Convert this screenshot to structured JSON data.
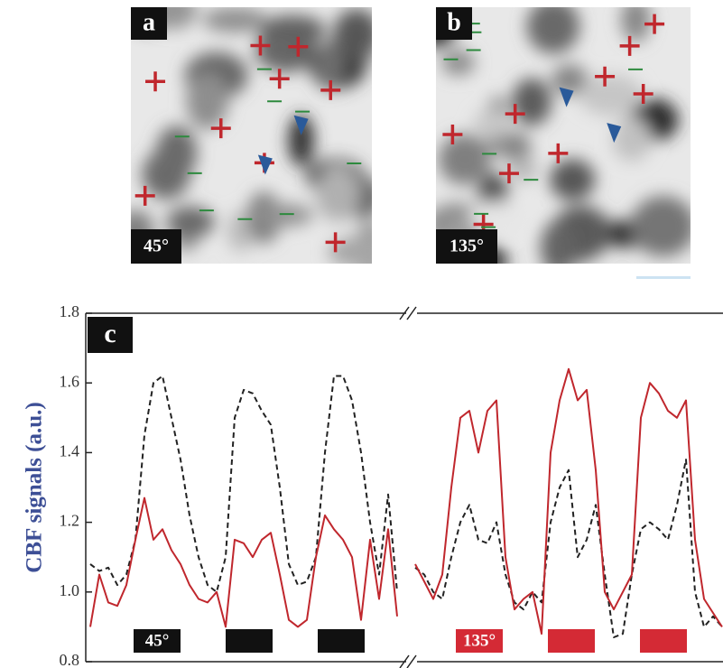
{
  "images": [
    {
      "label": "a",
      "angle": "45°"
    },
    {
      "label": "b",
      "angle": "135°"
    }
  ],
  "chart_data": {
    "type": "line",
    "panel_label": "c",
    "y_label": "CBF signals (a.u.)",
    "ylim": [
      0.8,
      1.8
    ],
    "yticks": [
      {
        "value": 0.8,
        "label": "0.8"
      },
      {
        "value": 1,
        "label": "1.0"
      },
      1.2,
      1.4,
      1.6,
      1.8
    ],
    "stimulus_labels": [
      "45°",
      "135°"
    ],
    "series": [
      {
        "color": "#222222",
        "dash": true,
        "values": [
          1.08,
          1.06,
          1.07,
          1.02,
          1.05,
          1.15,
          1.45,
          1.6,
          1.62,
          1.5,
          1.38,
          1.22,
          1.1,
          1.02,
          1.0,
          1.1,
          1.5,
          1.58,
          1.57,
          1.52,
          1.48,
          1.3,
          1.08,
          1.02,
          1.03,
          1.1,
          1.4,
          1.62,
          1.62,
          1.55,
          1.4,
          1.2,
          1.05,
          1.28,
          1.0,
          null,
          1.07,
          1.05,
          1.0,
          0.98,
          1.1,
          1.2,
          1.25,
          1.15,
          1.14,
          1.2,
          1.05,
          0.97,
          0.95,
          1.0,
          0.97,
          1.2,
          1.3,
          1.35,
          1.1,
          1.15,
          1.25,
          1.05,
          0.87,
          0.88,
          1.05,
          1.18,
          1.2,
          1.18,
          1.15,
          1.25,
          1.38,
          1.0,
          0.9,
          0.93,
          0.9
        ]
      },
      {
        "color": "#c0272d",
        "dash": false,
        "values": [
          0.9,
          1.05,
          0.97,
          0.96,
          1.02,
          1.15,
          1.27,
          1.15,
          1.18,
          1.12,
          1.08,
          1.02,
          0.98,
          0.97,
          1.0,
          0.9,
          1.15,
          1.14,
          1.1,
          1.15,
          1.17,
          1.05,
          0.92,
          0.9,
          0.92,
          1.1,
          1.22,
          1.18,
          1.15,
          1.1,
          0.92,
          1.15,
          0.98,
          1.18,
          0.93,
          null,
          1.08,
          1.03,
          0.98,
          1.05,
          1.3,
          1.5,
          1.52,
          1.4,
          1.52,
          1.55,
          1.1,
          0.95,
          0.98,
          1.0,
          0.88,
          1.4,
          1.55,
          1.64,
          1.55,
          1.58,
          1.35,
          1.0,
          0.95,
          1.0,
          1.05,
          1.5,
          1.6,
          1.57,
          1.52,
          1.5,
          1.55,
          1.15,
          0.98,
          0.94,
          0.9
        ]
      }
    ]
  }
}
